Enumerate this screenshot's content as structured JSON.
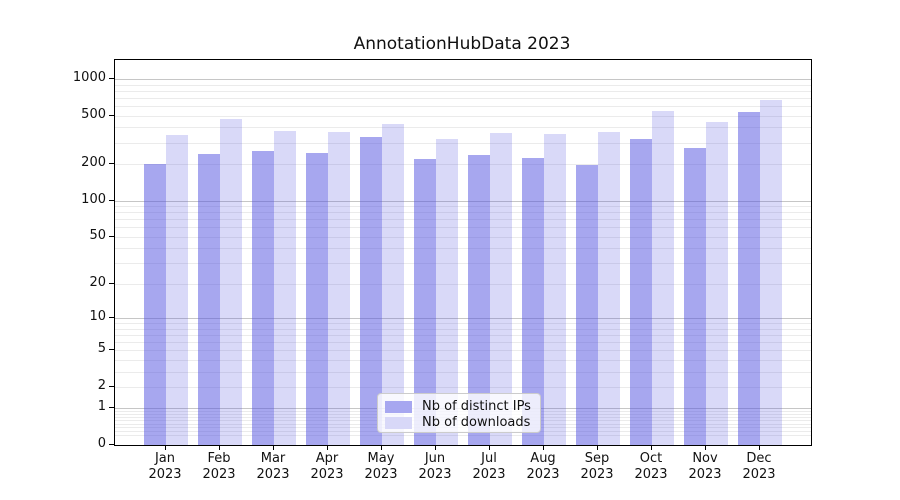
{
  "chart_data": {
    "type": "bar",
    "title": "AnnotationHubData 2023",
    "categories": [
      "Jan 2023",
      "Feb 2023",
      "Mar 2023",
      "Apr 2023",
      "May 2023",
      "Jun 2023",
      "Jul 2023",
      "Aug 2023",
      "Sep 2023",
      "Oct 2023",
      "Nov 2023",
      "Dec 2023"
    ],
    "series": [
      {
        "name": "Nb of distinct IPs",
        "values": [
          199,
          244,
          256,
          248,
          336,
          219,
          238,
          226,
          195,
          320,
          273,
          539
        ],
        "color": "rgba(80,80,224,0.50)",
        "legend_swatch_color": "#a7a7f0"
      },
      {
        "name": "Nb of downloads",
        "values": [
          345,
          466,
          375,
          368,
          425,
          324,
          358,
          356,
          368,
          550,
          447,
          668
        ],
        "color": "rgba(80,80,224,0.22)",
        "legend_swatch_color": "#d8d8f8"
      }
    ],
    "y_axis": {
      "scale": "log1p",
      "ticks": [
        1000,
        500,
        200,
        100,
        50,
        20,
        10,
        5,
        2,
        1,
        0
      ],
      "major_gridlines": [
        1,
        10,
        100,
        1000
      ],
      "minor_gridlines": [
        0.2,
        0.3,
        0.4,
        0.5,
        0.6,
        0.7,
        0.8,
        0.9,
        2,
        3,
        4,
        5,
        6,
        7,
        8,
        9,
        20,
        30,
        40,
        50,
        60,
        70,
        80,
        90,
        200,
        300,
        400,
        500,
        600,
        700,
        800,
        900
      ],
      "ylim": [
        0,
        1430
      ]
    },
    "x_axis": {
      "label": "",
      "tick_label_lines": 2
    },
    "legend": {
      "position": "bottom-center"
    },
    "grid": true,
    "colors": {
      "axis": "#000000",
      "major_grid": "#c6c6c6",
      "minor_grid": "#ebebeb",
      "text": "#111111",
      "background": "#ffffff"
    }
  }
}
